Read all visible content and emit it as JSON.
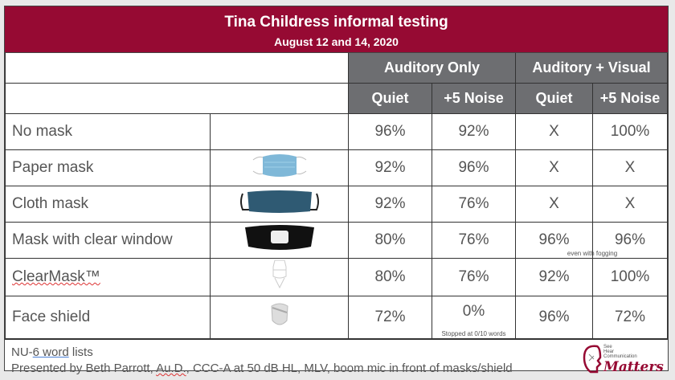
{
  "title": "Tina Childress informal testing",
  "subtitle": "August 12 and 14, 2020",
  "groups": [
    "Auditory Only",
    "Auditory + Visual"
  ],
  "subheaders": [
    "Quiet",
    "+5 Noise",
    "Quiet",
    "+5 Noise"
  ],
  "rows": [
    {
      "label": "No mask",
      "image": "none",
      "values": [
        "96%",
        "92%",
        "X",
        "100%"
      ]
    },
    {
      "label": "Paper mask",
      "image": "paper-mask",
      "values": [
        "92%",
        "96%",
        "X",
        "X"
      ]
    },
    {
      "label": "Cloth mask",
      "image": "cloth-mask",
      "values": [
        "92%",
        "76%",
        "X",
        "X"
      ]
    },
    {
      "label": "Mask with clear window",
      "image": "clear-window-mask",
      "values": [
        "80%",
        "76%",
        "96%",
        "96%"
      ],
      "note": "even with fogging"
    },
    {
      "label": "ClearMask™",
      "image": "clearmask",
      "values": [
        "80%",
        "76%",
        "92%",
        "100%"
      ]
    },
    {
      "label": "Face shield",
      "image": "face-shield",
      "values": [
        "72%",
        "0%",
        "96%",
        "72%"
      ],
      "note": "Stopped at 0/10 words"
    }
  ],
  "footer": {
    "line1_a": "NU-",
    "line1_b": "6 word",
    "line1_c": " lists",
    "line2_a": "Presented by Beth Parrott, ",
    "line2_b": "Au.D.",
    "line2_c": ", CCC-A at 50 dB HL, MLV, boom mic in front of masks/shield"
  },
  "logo": {
    "l1": "See",
    "l2": "Hear",
    "l3": "Communication",
    "l4": "Matters"
  },
  "colors": {
    "header": "#960a33",
    "subheader": "#6d6e71"
  }
}
